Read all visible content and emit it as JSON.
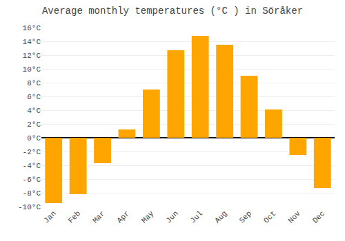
{
  "chart_data": {
    "type": "bar",
    "title": "Average monthly temperatures (°C ) in Söråker",
    "categories": [
      "Jan",
      "Feb",
      "Mar",
      "Apr",
      "May",
      "Jun",
      "Jul",
      "Aug",
      "Sep",
      "Oct",
      "Nov",
      "Dec"
    ],
    "values": [
      -9.5,
      -8.2,
      -3.7,
      1.2,
      7.0,
      12.7,
      14.8,
      13.5,
      9.0,
      4.1,
      -2.5,
      -7.3
    ],
    "color": "#FFA500",
    "ylim": [
      -10,
      16
    ],
    "yticks": [
      {
        "value": -10,
        "label": "-10°C"
      },
      {
        "value": -8,
        "label": "-8°C"
      },
      {
        "value": -6,
        "label": "-6°C"
      },
      {
        "value": -4,
        "label": "-4°C"
      },
      {
        "value": -2,
        "label": "-2°C"
      },
      {
        "value": 0,
        "label": "0°C"
      },
      {
        "value": 2,
        "label": "2°C"
      },
      {
        "value": 4,
        "label": "4°C"
      },
      {
        "value": 6,
        "label": "6°C"
      },
      {
        "value": 8,
        "label": "8°C"
      },
      {
        "value": 10,
        "label": "10°C"
      },
      {
        "value": 12,
        "label": "12°C"
      },
      {
        "value": 14,
        "label": "14°C"
      },
      {
        "value": 16,
        "label": "16°C"
      }
    ],
    "grid": true
  }
}
